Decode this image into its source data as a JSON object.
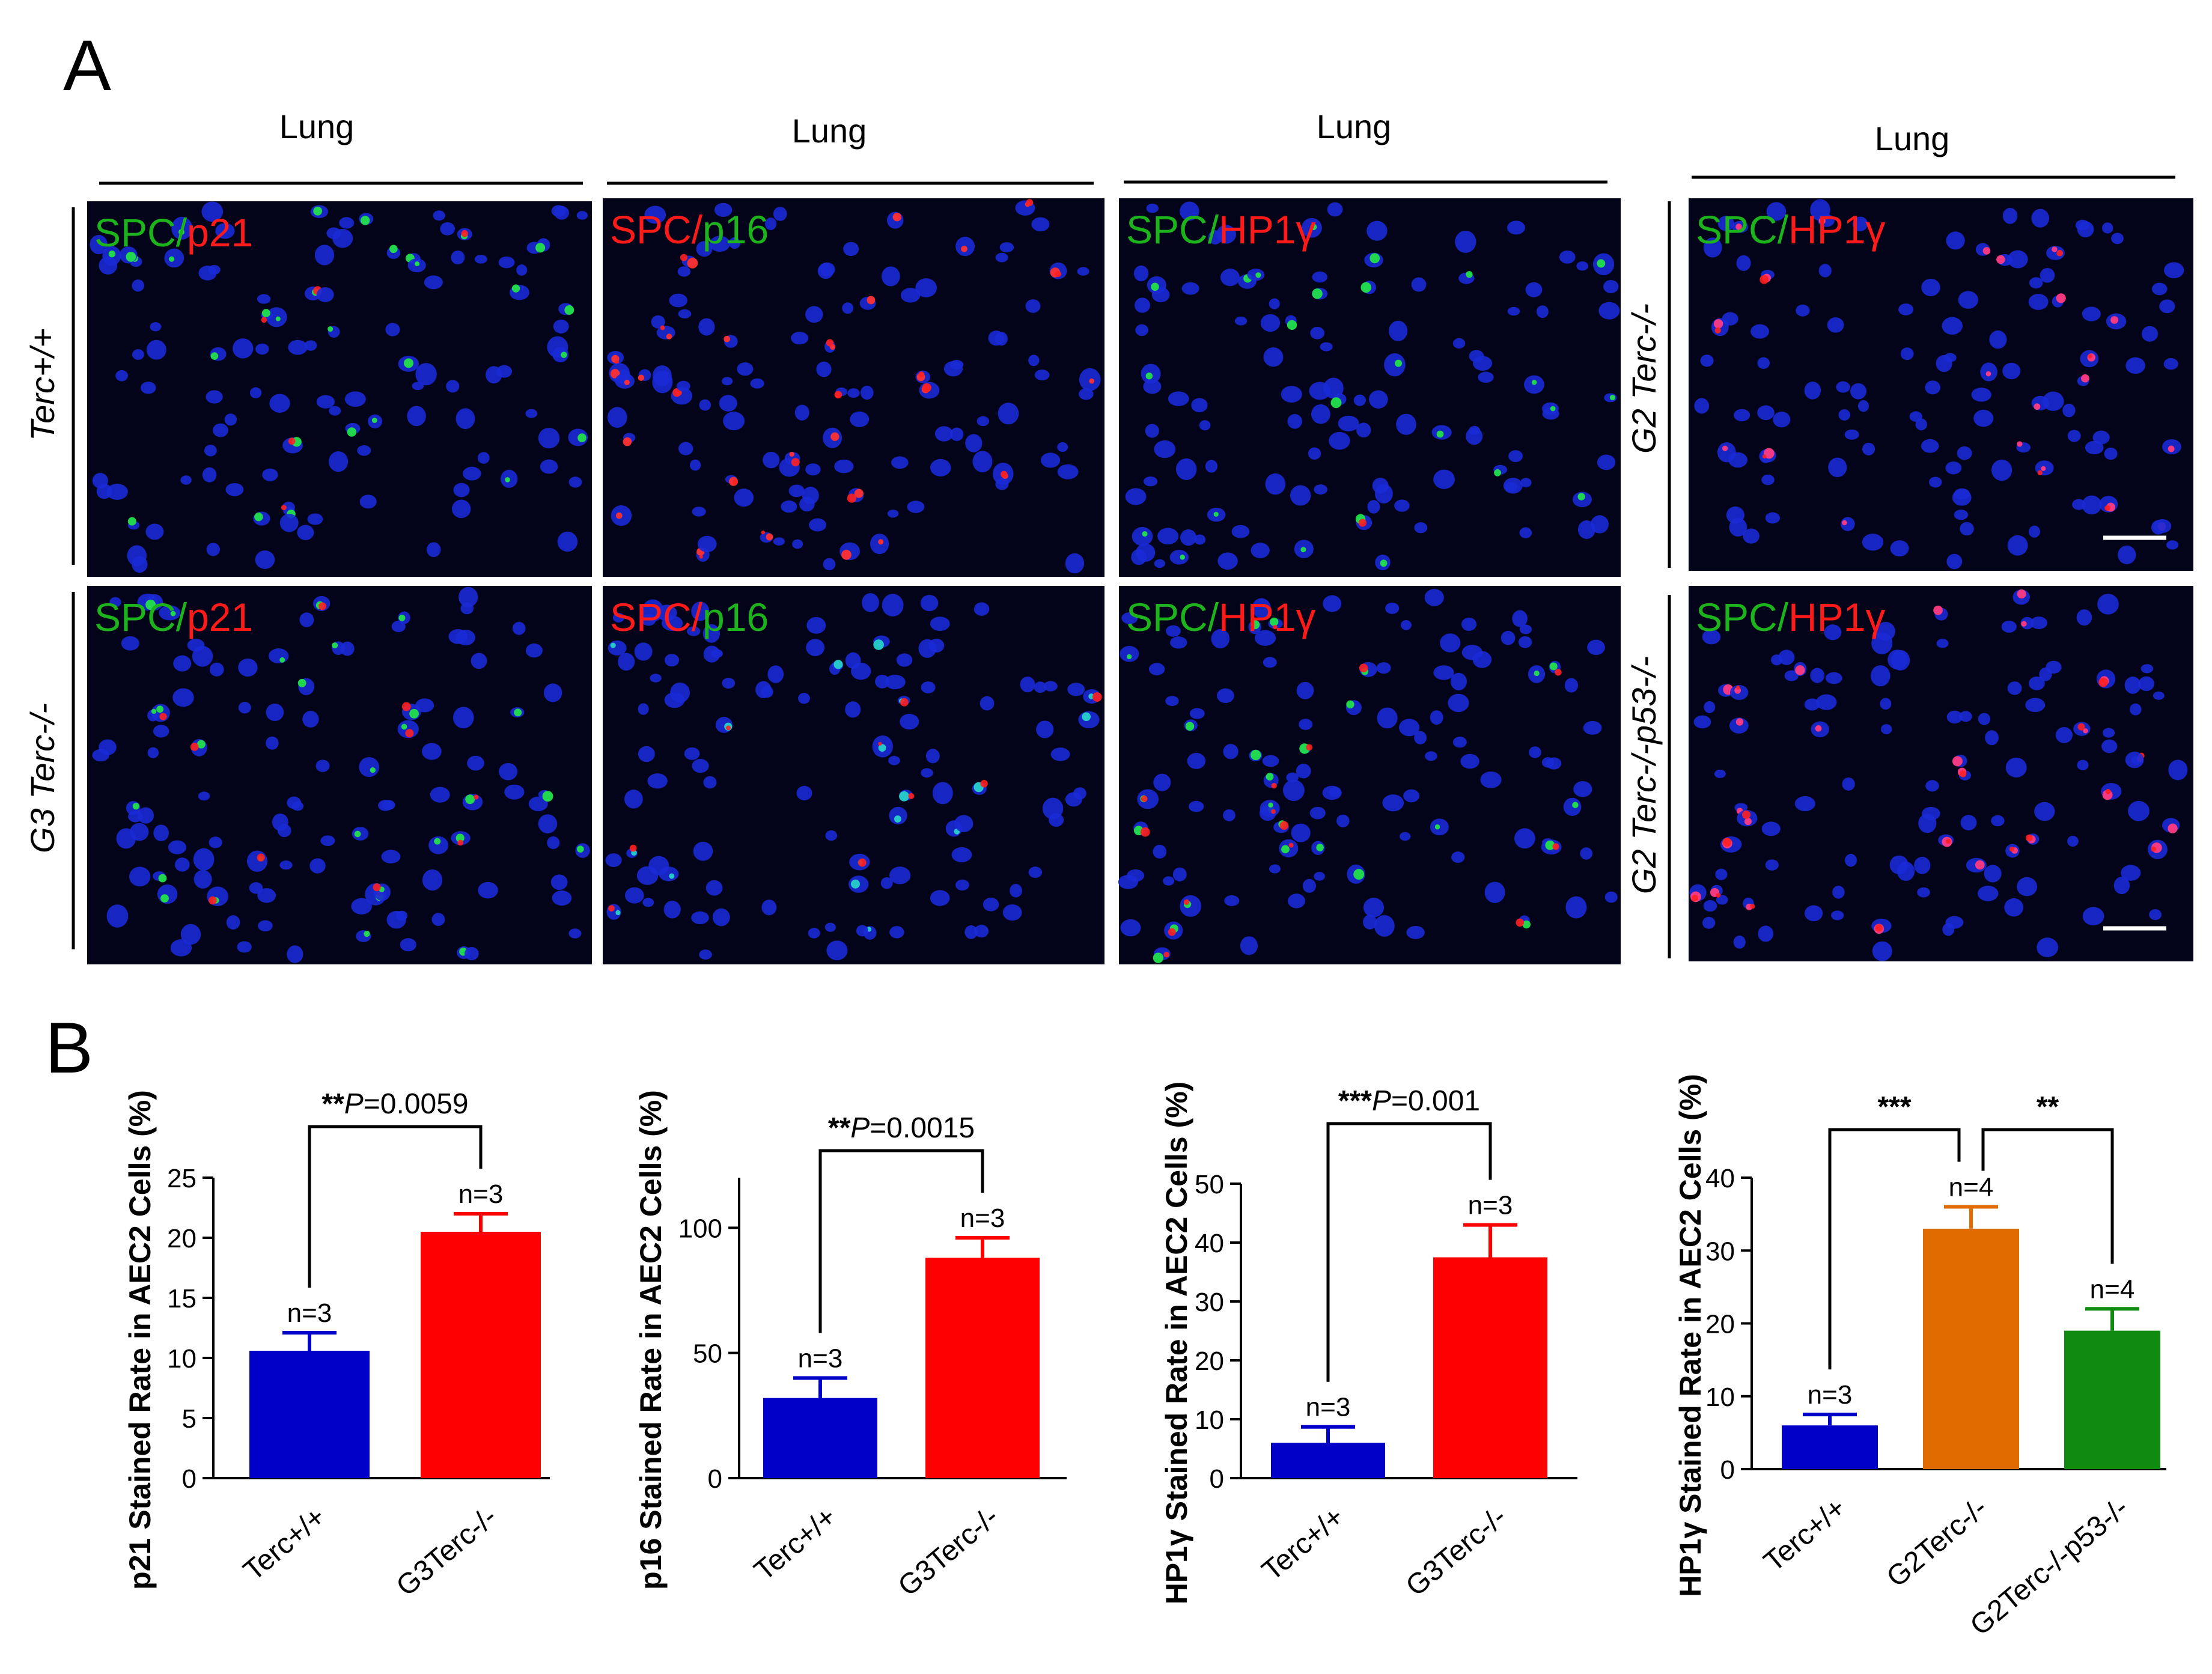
{
  "panel_a": {
    "letter": "A",
    "column_headers": [
      "Lung",
      "Lung",
      "Lung",
      "Lung"
    ],
    "row_labels": {
      "left_top": "Terc+/+",
      "left_bottom": "G3 Terc-/-",
      "right_top": "G2 Terc-/-",
      "right_bottom": "G2 Terc-/-p53-/-"
    },
    "image_labels": {
      "r1c1": {
        "a": "SPC/",
        "b": "p21"
      },
      "r1c2": {
        "a": "SPC/",
        "b": "p16"
      },
      "r1c3": {
        "a": "SPC/",
        "b": "HP1γ"
      },
      "r1c4": {
        "a": "SPC/",
        "b": "HP1γ"
      },
      "r2c1": {
        "a": "SPC/",
        "b": "p21"
      },
      "r2c2": {
        "a": "SPC/",
        "b": "p16"
      },
      "r2c3": {
        "a": "SPC/",
        "b": "HP1γ"
      },
      "r2c4": {
        "a": "SPC/",
        "b": "HP1γ"
      }
    }
  },
  "panel_b": {
    "letter": "B"
  },
  "chart_data": [
    {
      "type": "bar",
      "ylabel": "p21 Stained Rate in AEC2 Cells (%)",
      "categories": [
        "Terc+/+",
        "G3Terc-/-"
      ],
      "values": [
        10.6,
        20.5
      ],
      "errors": [
        1.5,
        1.5
      ],
      "n_labels": [
        "n=3",
        "n=3"
      ],
      "colors": [
        "#0000c8",
        "#ff0000"
      ],
      "ylim": [
        0,
        25
      ],
      "yticks": [
        "0",
        "5",
        "10",
        "15",
        "20",
        "25"
      ],
      "sig": {
        "stars": "**",
        "p": "P",
        "value": "=0.0059"
      }
    },
    {
      "type": "bar",
      "ylabel": "p16 Stained Rate in AEC2 Cells (%)",
      "categories": [
        "Terc+/+",
        "G3Terc-/-"
      ],
      "values": [
        32,
        88
      ],
      "errors": [
        8,
        8
      ],
      "n_labels": [
        "n=3",
        "n=3"
      ],
      "colors": [
        "#0000c8",
        "#ff0000"
      ],
      "ylim": [
        0,
        120
      ],
      "yticks": [
        "0",
        "50",
        "100"
      ],
      "sig": {
        "stars": "**",
        "p": "P",
        "value": "=0.0015"
      }
    },
    {
      "type": "bar",
      "ylabel_prefix": "HP1γ",
      "ylabel": "Stained Rate in AEC2 Cells (%)",
      "categories": [
        "Terc+/+",
        "G3Terc-/-"
      ],
      "values": [
        6,
        37.5
      ],
      "errors": [
        2.7,
        5.5
      ],
      "n_labels": [
        "n=3",
        "n=3"
      ],
      "colors": [
        "#0000c8",
        "#ff0000"
      ],
      "ylim": [
        0,
        50
      ],
      "yticks": [
        "0",
        "10",
        "20",
        "30",
        "40",
        "50"
      ],
      "sig": {
        "stars": "***",
        "p": "P",
        "value": "=0.001"
      }
    },
    {
      "type": "bar",
      "ylabel_prefix": "HP1γ",
      "ylabel": "Stained Rate in AEC2 Cells (%)",
      "categories": [
        "Terc+/+",
        "G2Terc-/-",
        "G2Terc-/-p53-/-"
      ],
      "values": [
        6,
        33,
        19
      ],
      "errors": [
        1.5,
        3,
        3
      ],
      "n_labels": [
        "n=3",
        "n=4",
        "n=4"
      ],
      "colors": [
        "#0000c8",
        "#e06c00",
        "#108a10"
      ],
      "ylim": [
        0,
        40
      ],
      "yticks": [
        "0",
        "10",
        "20",
        "30",
        "40"
      ],
      "sig_pairs": [
        {
          "stars": "***"
        },
        {
          "stars": "**"
        }
      ]
    }
  ]
}
